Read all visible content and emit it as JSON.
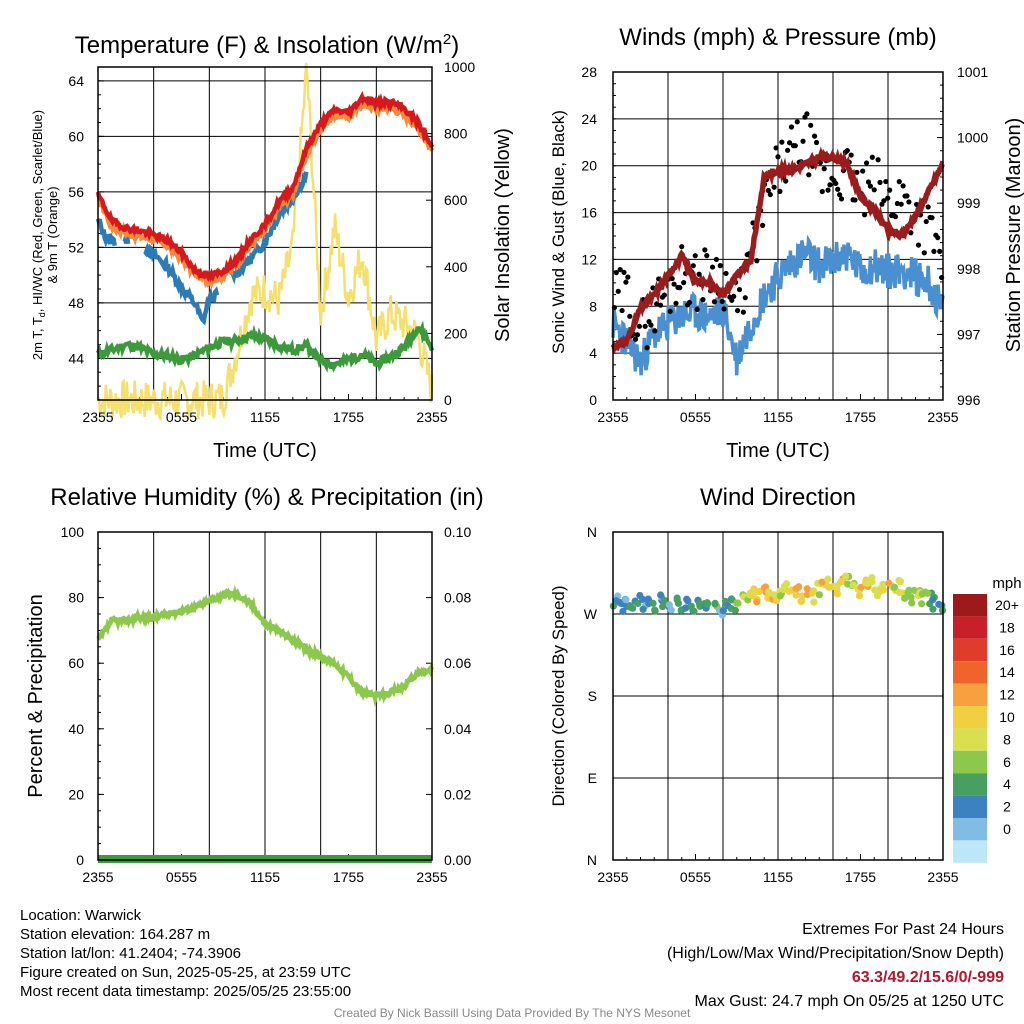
{
  "colors": {
    "temp_2m": "#d7191c",
    "dewpoint": "#3c9a3c",
    "heat_index": "#2c7bb6",
    "temp_9m": "#f08c3c",
    "insolation": "#f5e06e",
    "wind_speed": "#4a90d0",
    "gust": "#000000",
    "pressure": "#9a1c1c",
    "humidity": "#8cc84b",
    "precipitation": "#3c9a3c"
  },
  "panels": {
    "temperature": {
      "title": "Temperature (F) & Insolation (W/m²)",
      "ylabel": "2m T, T_d, HI/WC (Red, Green, Scarlet/Blue) & 9m T (Orange)",
      "ylabel_line1": "2m T, T",
      "ylabel_sub": "d",
      "ylabel_line1b": ", HI/WC (Red, Green, Scarlet/Blue)",
      "ylabel_line2": "& 9m T (Orange)",
      "y2label": "Solar Insolation (Yellow)",
      "xlabel": "Time (UTC)"
    },
    "winds": {
      "title": "Winds (mph) & Pressure (mb)",
      "ylabel": "Sonic Wind & Gust (Blue, Black)",
      "y2label": "Station Pressure (Maroon)",
      "xlabel": "Time (UTC)"
    },
    "humidity": {
      "title": "Relative Humidity (%) & Precipitation (in)",
      "ylabel": "Percent & Precipitation"
    },
    "direction": {
      "title": "Wind Direction",
      "ylabel": "Direction (Colored By Speed)",
      "legend_title": "mph",
      "legend_labels": [
        "20+",
        "18",
        "16",
        "14",
        "12",
        "10",
        "8",
        "6",
        "4",
        "2",
        "0"
      ],
      "legend_colors": [
        "#9e1a1a",
        "#c8202a",
        "#e03c2c",
        "#f0642c",
        "#f8a040",
        "#f0d040",
        "#d8e050",
        "#8cc84b",
        "#48a060",
        "#3c82c0",
        "#80bce4",
        "#bde6f8"
      ]
    }
  },
  "chart_data": [
    {
      "type": "line",
      "x_ticks": [
        "2355",
        "0555",
        "1155",
        "1755",
        "2355"
      ],
      "y_ticks": [
        44,
        48,
        52,
        56,
        60,
        64
      ],
      "y2_ticks": [
        0,
        200,
        400,
        600,
        800,
        1000
      ],
      "ylim": [
        41,
        65
      ],
      "y2lim": [
        0,
        1000
      ],
      "series": [
        {
          "key": "temp_2m",
          "x": [
            0,
            1,
            2,
            3,
            4,
            5,
            6,
            7,
            8,
            9,
            10,
            11,
            12,
            13,
            14,
            15,
            16,
            17,
            18,
            19,
            20,
            21,
            22,
            23,
            24
          ],
          "values": [
            55.8,
            53.9,
            53.4,
            53.2,
            52.9,
            52.5,
            51.6,
            50.3,
            49.9,
            50.3,
            51.1,
            52.6,
            53.6,
            55.3,
            56.3,
            59.2,
            60.9,
            61.9,
            61.7,
            62.8,
            62.4,
            62.5,
            62.0,
            61.0,
            59.2
          ]
        },
        {
          "key": "temp_9m",
          "x": [
            0,
            1,
            2,
            3,
            4,
            5,
            6,
            7,
            8,
            9,
            10,
            11,
            12,
            13,
            14,
            15,
            16,
            17,
            18,
            19,
            20,
            21,
            22,
            23,
            24
          ],
          "values": [
            55.6,
            53.5,
            53.1,
            52.8,
            52.6,
            52.1,
            51.3,
            50.0,
            49.6,
            50.0,
            50.8,
            52.2,
            53.2,
            54.9,
            55.9,
            58.7,
            60.6,
            61.6,
            61.4,
            62.4,
            62.0,
            62.1,
            61.6,
            60.7,
            59.0
          ]
        },
        {
          "key": "heat_index",
          "x": [
            0,
            0.5,
            1,
            1.5,
            2,
            3,
            4,
            5,
            6,
            7,
            7.5,
            8,
            9,
            9.5,
            10,
            11,
            12,
            13,
            14,
            15
          ],
          "values": [
            53.9,
            52.8,
            52.5,
            52.3,
            52.6,
            52.2,
            51.5,
            50.6,
            49.1,
            47.9,
            46.6,
            48.2,
            48.9,
            49.9,
            50.2,
            51.2,
            52.4,
            54.4,
            55.6,
            57.3
          ]
        },
        {
          "key": "dewpoint",
          "x": [
            0,
            1,
            2,
            3,
            4,
            5,
            6,
            7,
            8,
            9,
            10,
            11,
            12,
            13,
            14,
            15,
            16,
            17,
            18,
            19,
            20,
            21,
            22,
            23,
            24
          ],
          "values": [
            44.3,
            44.6,
            45.0,
            44.8,
            44.3,
            44.2,
            43.9,
            44.2,
            44.8,
            45.2,
            45.3,
            45.6,
            45.4,
            44.9,
            44.6,
            44.9,
            43.8,
            43.6,
            43.9,
            44.3,
            43.6,
            44.1,
            44.8,
            46.3,
            44.8
          ]
        },
        {
          "key": "insolation",
          "x": [
            0,
            1,
            2,
            3,
            4,
            5,
            6,
            7,
            8,
            9,
            10,
            11,
            12,
            13,
            14,
            15,
            16,
            17,
            18,
            19,
            20,
            21,
            22,
            23,
            24
          ],
          "values": [
            0,
            0,
            0,
            0,
            0,
            0,
            0,
            0,
            0,
            6,
            150,
            310,
            330,
            300,
            460,
            1000,
            260,
            520,
            310,
            440,
            180,
            260,
            230,
            190,
            30
          ]
        }
      ]
    },
    {
      "type": "line",
      "x_ticks": [
        "2355",
        "0555",
        "1155",
        "1755",
        "2355"
      ],
      "y_ticks": [
        0,
        4,
        8,
        12,
        16,
        20,
        24,
        28
      ],
      "y2_ticks": [
        996,
        997,
        998,
        999,
        1000,
        1001
      ],
      "ylim": [
        0,
        28
      ],
      "y2lim": [
        996,
        1001
      ],
      "series": [
        {
          "key": "wind_speed",
          "x": [
            0,
            1,
            2,
            3,
            4,
            5,
            6,
            7,
            8,
            9,
            10,
            11,
            12,
            13,
            14,
            15,
            16,
            17,
            18,
            19,
            20,
            21,
            22,
            23,
            24
          ],
          "values": [
            6.5,
            5.0,
            3.2,
            5.5,
            6.5,
            7.2,
            7.5,
            7.0,
            7.8,
            3.5,
            6.5,
            9.0,
            10.5,
            11.8,
            12.5,
            11.5,
            11.8,
            12.5,
            11.0,
            11.5,
            11.0,
            11.2,
            10.5,
            10.0,
            7.5
          ]
        },
        {
          "key": "gust",
          "x": [
            0,
            1,
            2,
            3,
            4,
            5,
            6,
            7,
            8,
            9,
            10,
            11,
            12,
            13,
            14,
            15,
            16,
            17,
            18,
            19,
            20,
            21,
            22,
            23,
            24
          ],
          "values": [
            8.5,
            9.0,
            6.0,
            8.0,
            9.5,
            11.0,
            10.0,
            11.0,
            10.5,
            7.5,
            12.0,
            16.5,
            19.5,
            21.0,
            22.5,
            19.0,
            19.0,
            19.5,
            17.5,
            18.5,
            17.0,
            17.5,
            16.0,
            14.5,
            12.0
          ]
        },
        {
          "key": "pressure",
          "x": [
            0,
            1,
            2,
            3,
            4,
            5,
            6,
            7,
            8,
            9,
            10,
            11,
            12,
            13,
            14,
            15,
            16,
            17,
            18,
            19,
            20,
            21,
            22,
            23,
            24
          ],
          "values": [
            996.8,
            996.9,
            997.4,
            997.6,
            997.9,
            998.2,
            997.8,
            997.8,
            997.6,
            997.9,
            998.1,
            999.4,
            999.5,
            999.5,
            999.6,
            999.7,
            999.7,
            999.6,
            999.1,
            998.9,
            998.6,
            998.5,
            998.8,
            999.2,
            999.6
          ]
        }
      ]
    },
    {
      "type": "line",
      "x_ticks": [
        "2355",
        "0555",
        "1155",
        "1755",
        "2355"
      ],
      "y_ticks": [
        0,
        20,
        40,
        60,
        80,
        100
      ],
      "y2_ticks": [
        "0.00",
        "0.02",
        "0.04",
        "0.06",
        "0.08",
        "0.10"
      ],
      "ylim": [
        0,
        100
      ],
      "y2lim": [
        0,
        0.1
      ],
      "series": [
        {
          "key": "humidity",
          "x": [
            0,
            1,
            2,
            3,
            4,
            5,
            6,
            7,
            8,
            9,
            10,
            11,
            12,
            13,
            14,
            15,
            16,
            17,
            18,
            19,
            20,
            21,
            22,
            23,
            24
          ],
          "values": [
            67,
            73,
            73,
            74,
            74,
            75,
            76,
            77,
            79,
            81,
            81,
            78,
            72,
            70,
            67,
            64,
            62,
            60,
            56,
            51,
            50,
            51,
            53,
            57,
            58
          ]
        },
        {
          "key": "precipitation",
          "x": [
            0,
            24
          ],
          "values": [
            0,
            0
          ]
        }
      ]
    },
    {
      "type": "scatter",
      "x_ticks": [
        "2355",
        "0555",
        "1155",
        "1755",
        "2355"
      ],
      "y_ticks": [
        "N",
        "W",
        "S",
        "E",
        "N"
      ],
      "ylim": [
        0,
        360
      ],
      "series": [
        {
          "key": "direction",
          "x": [
            0.2,
            0.6,
            1.0,
            1.4,
            1.8,
            2.2,
            2.6,
            3.0,
            3.4,
            3.8,
            4.2,
            4.6,
            5.0,
            5.4,
            5.8,
            6.2,
            6.6,
            7.0,
            7.4,
            7.8,
            8.2,
            8.6,
            9.0,
            9.4,
            9.8,
            10.2,
            10.6,
            11.0,
            11.4,
            11.8,
            12.2,
            12.6,
            13.0,
            13.4,
            13.8,
            14.2,
            14.6,
            15.0,
            15.4,
            15.8,
            16.2,
            16.6,
            17.0,
            17.4,
            17.8,
            18.2,
            18.6,
            19.0,
            19.4,
            19.8,
            20.2,
            20.6,
            21.0,
            21.4,
            21.8,
            22.2,
            22.6,
            23.0,
            23.4,
            23.8
          ],
          "values": [
            283,
            278,
            282,
            276,
            285,
            279,
            281,
            277,
            284,
            280,
            278,
            283,
            276,
            281,
            279,
            282,
            277,
            280,
            283,
            270,
            278,
            281,
            276,
            285,
            290,
            292,
            288,
            295,
            292,
            290,
            296,
            300,
            298,
            294,
            288,
            292,
            289,
            297,
            300,
            302,
            296,
            304,
            308,
            299,
            295,
            301,
            306,
            303,
            291,
            296,
            298,
            302,
            300,
            294,
            289,
            292,
            288,
            286,
            282,
            279
          ],
          "speed": [
            4,
            5,
            3,
            6,
            5,
            4,
            5,
            6,
            4,
            5,
            3,
            6,
            5,
            4,
            6,
            5,
            4,
            5,
            6,
            3,
            5,
            6,
            7,
            8,
            10,
            12,
            13,
            14,
            11,
            12,
            9,
            10,
            12,
            13,
            11,
            14,
            10,
            9,
            12,
            11,
            10,
            12,
            9,
            8,
            11,
            13,
            12,
            10,
            9,
            11,
            12,
            10,
            11,
            9,
            8,
            10,
            9,
            7,
            6,
            5
          ]
        }
      ]
    }
  ],
  "footer": {
    "location": "Location: Warwick",
    "elevation": "Station elevation: 164.287 m",
    "latlon": "Station lat/lon: 41.2404; -74.3906",
    "created": "Figure created on Sun, 2025-05-25, at 23:59 UTC",
    "recent": "Most recent data timestamp: 2025/05/25 23:55:00",
    "extremes_title": "Extremes For Past 24 Hours",
    "extremes_sub": "(High/Low/Max Wind/Precipitation/Snow Depth)",
    "extremes_values": "63.3/49.2/15.6/0/-999",
    "max_gust": "Max Gust: 24.7 mph On 05/25 at 1250 UTC",
    "credit": "Created By Nick Bassill Using Data Provided By The NYS Mesonet"
  }
}
